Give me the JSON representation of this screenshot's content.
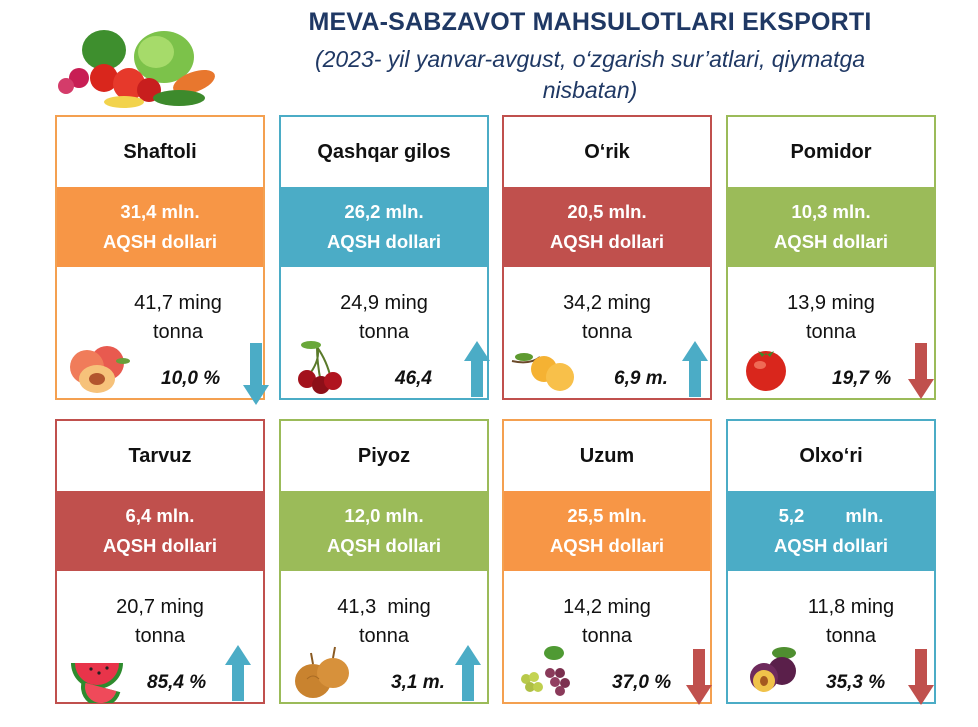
{
  "title": "MEVA-SABZAVOT MAHSULOTLARI EKSPORTI",
  "subtitle_line1": "(2023- yil yanvar-avgust, o‘zgarish sur’atlari, qiymatga",
  "subtitle_line2": "nisbatan)",
  "colors": {
    "orange": "#f79646",
    "teal": "#4bacc6",
    "red": "#c0504d",
    "green": "#9bbb59",
    "title": "#1f3864"
  },
  "cards": [
    {
      "name": "Shaftoli",
      "amount": "31,4 mln.",
      "currency": "AQSH dollari",
      "qty_line1": "41,7 ming",
      "qty_line2": "tonna",
      "change": "10,0 %",
      "trend": "down",
      "image_icon": "peach-icon"
    },
    {
      "name": "Qashqar gilos",
      "amount": "26,2 mln.",
      "currency": "AQSH dollari",
      "qty_line1": "24,9 ming",
      "qty_line2": "tonna",
      "change": "46,4",
      "trend": "up",
      "image_icon": "cherry-icon"
    },
    {
      "name": "O‘rik",
      "amount": "20,5 mln.",
      "currency": "AQSH dollari",
      "qty_line1": "34,2 ming",
      "qty_line2": "tonna",
      "change": "6,9  m.",
      "trend": "up",
      "image_icon": "apricot-icon"
    },
    {
      "name": "Pomidor",
      "amount": "10,3 mln.",
      "currency": "AQSH dollari",
      "qty_line1": "13,9 ming",
      "qty_line2": "tonna",
      "change": "19,7 %",
      "trend": "down",
      "image_icon": "tomato-icon"
    },
    {
      "name": "Tarvuz",
      "amount": "6,4 mln.",
      "currency": "AQSH dollari",
      "qty_line1": "20,7 ming",
      "qty_line2": "tonna",
      "change": "85,4 %",
      "trend": "up",
      "image_icon": "watermelon-icon"
    },
    {
      "name": "Piyoz",
      "amount": "12,0 mln.",
      "currency": "AQSH dollari",
      "qty_line1": "41,3  ming",
      "qty_line2": "tonna",
      "change": "3,1 m.",
      "trend": "up",
      "image_icon": "onion-icon"
    },
    {
      "name": "Uzum",
      "amount": "25,5 mln.",
      "currency": "AQSH dollari",
      "qty_line1": "14,2 ming",
      "qty_line2": "tonna",
      "change": "37,0 %",
      "trend": "down",
      "image_icon": "grapes-icon"
    },
    {
      "name": "Olxo‘ri",
      "amount": "5,2        mln.",
      "currency": "AQSH dollari",
      "qty_line1": "11,8 ming",
      "qty_line2": "tonna",
      "change": "35,3 %",
      "trend": "down",
      "image_icon": "plum-icon"
    }
  ]
}
